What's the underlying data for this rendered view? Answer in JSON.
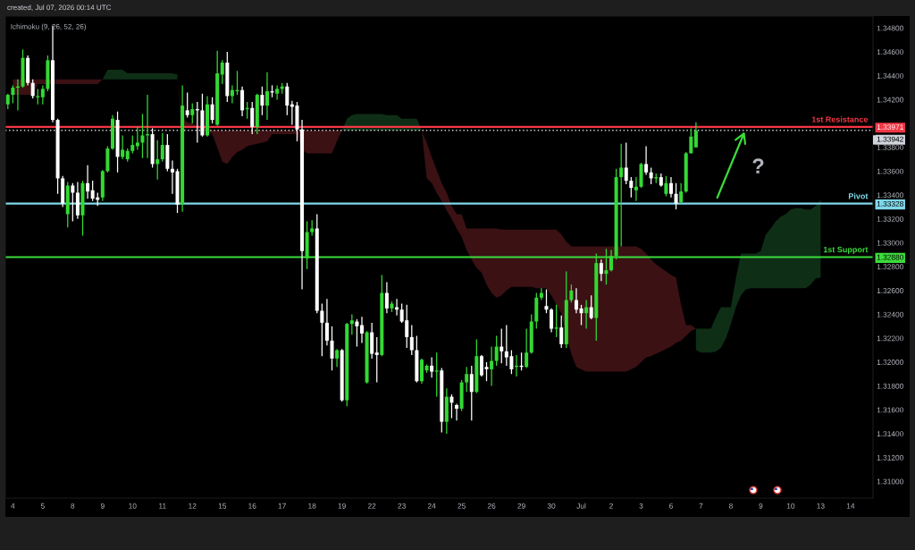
{
  "chart_data": {
    "type": "candlestick",
    "title": "created, Jul 07, 2026 00:14 UTC",
    "annotations": [
      "Ichimoku (9, 26, 52, 26)",
      {
        "text": "?",
        "y": 1.3393
      }
    ],
    "categories": [
      null,
      "4",
      null,
      null,
      null,
      null,
      null,
      "5",
      null,
      null,
      null,
      null,
      null,
      "8",
      null,
      null,
      null,
      null,
      null,
      "9",
      null,
      null,
      null,
      null,
      null,
      "10",
      null,
      null,
      null,
      null,
      null,
      "11",
      null,
      null,
      null,
      null,
      null,
      "12",
      null,
      null,
      null,
      null,
      null,
      "15",
      null,
      null,
      null,
      null,
      null,
      "16",
      null,
      null,
      null,
      null,
      null,
      "17",
      null,
      null,
      null,
      null,
      null,
      "18",
      null,
      null,
      null,
      null,
      null,
      "19",
      null,
      null,
      null,
      null,
      null,
      "22",
      null,
      null,
      null,
      null,
      null,
      "23",
      null,
      null,
      null,
      null,
      null,
      "24",
      null,
      null,
      null,
      null,
      null,
      "25",
      null,
      null,
      null,
      null,
      null,
      "26",
      null,
      null,
      null,
      null,
      null,
      "29",
      null,
      null,
      null,
      null,
      null,
      "30",
      null,
      null,
      null,
      null,
      null,
      "Jul",
      null,
      null,
      null,
      null,
      null,
      "2",
      null,
      null,
      null,
      null,
      null,
      "3",
      null,
      null,
      null,
      null,
      null,
      "6",
      null,
      null,
      null,
      null,
      null,
      "7",
      null,
      null,
      null,
      null,
      null,
      "8",
      null,
      null,
      null,
      null,
      null,
      "9",
      null,
      null,
      null,
      null,
      null,
      "10",
      null,
      null,
      null,
      null,
      null,
      "13",
      null,
      null,
      null,
      null,
      null,
      "14",
      null,
      null,
      null,
      null
    ],
    "ohlc": [
      [
        1.3416,
        1.3425,
        1.3412,
        1.3424
      ],
      [
        1.3424,
        1.3432,
        1.3417,
        1.343
      ],
      [
        1.343,
        1.3437,
        1.3411,
        1.3431
      ],
      [
        1.3431,
        1.3462,
        1.343,
        1.3455
      ],
      [
        1.3455,
        1.3457,
        1.3432,
        1.3434
      ],
      [
        1.3434,
        1.3437,
        1.3421,
        1.3423
      ],
      [
        1.3422,
        1.3429,
        1.3416,
        1.3423
      ],
      [
        1.3422,
        1.3432,
        1.3416,
        1.3429
      ],
      [
        1.3429,
        1.3457,
        1.3427,
        1.3453
      ],
      [
        1.3453,
        1.3482,
        1.3401,
        1.3403
      ],
      [
        1.3403,
        1.3404,
        1.3341,
        1.3354
      ],
      [
        1.3354,
        1.3356,
        1.333,
        1.3333
      ],
      [
        1.3324,
        1.3351,
        1.3313,
        1.3348
      ],
      [
        1.3348,
        1.335,
        1.3318,
        1.3342
      ],
      [
        1.3342,
        1.3351,
        1.332,
        1.3323
      ],
      [
        1.3323,
        1.3352,
        1.3306,
        1.335
      ],
      [
        1.335,
        1.3365,
        1.3337,
        1.3343
      ],
      [
        1.3344,
        1.3352,
        1.3335,
        1.3337
      ],
      [
        1.3338,
        1.3342,
        1.3331,
        1.3336
      ],
      [
        1.3338,
        1.3361,
        1.3335,
        1.336
      ],
      [
        1.336,
        1.3381,
        1.3359,
        1.3379
      ],
      [
        1.3379,
        1.3407,
        1.3378,
        1.3404
      ],
      [
        1.3403,
        1.341,
        1.3359,
        1.3372
      ],
      [
        1.3372,
        1.339,
        1.337,
        1.3378
      ],
      [
        1.337,
        1.3379,
        1.3368,
        1.3377
      ],
      [
        1.3377,
        1.339,
        1.3375,
        1.3382
      ],
      [
        1.3381,
        1.3397,
        1.3378,
        1.3384
      ],
      [
        1.3384,
        1.3408,
        1.3371,
        1.339
      ],
      [
        1.339,
        1.3424,
        1.3371,
        1.3391
      ],
      [
        1.3391,
        1.3396,
        1.3363,
        1.3366
      ],
      [
        1.3366,
        1.3386,
        1.3353,
        1.337
      ],
      [
        1.337,
        1.3392,
        1.3368,
        1.3382
      ],
      [
        1.3382,
        1.3391,
        1.336,
        1.3362
      ],
      [
        1.3362,
        1.3369,
        1.3341,
        1.3359
      ],
      [
        1.336,
        1.3362,
        1.3325,
        1.3332
      ],
      [
        1.3332,
        1.3432,
        1.3326,
        1.3415
      ],
      [
        1.3411,
        1.3426,
        1.3405,
        1.3407
      ],
      [
        1.3407,
        1.3417,
        1.34,
        1.3412
      ],
      [
        1.3412,
        1.3418,
        1.3384,
        1.3411
      ],
      [
        1.3411,
        1.3425,
        1.3389,
        1.339
      ],
      [
        1.339,
        1.3423,
        1.3389,
        1.3416
      ],
      [
        1.3416,
        1.3422,
        1.34,
        1.3403
      ],
      [
        1.3399,
        1.3461,
        1.3398,
        1.3442
      ],
      [
        1.3441,
        1.3453,
        1.3433,
        1.3451
      ],
      [
        1.3451,
        1.346,
        1.3418,
        1.3423
      ],
      [
        1.3423,
        1.3432,
        1.3417,
        1.3428
      ],
      [
        1.3427,
        1.3444,
        1.3424,
        1.3428
      ],
      [
        1.3428,
        1.3431,
        1.3406,
        1.3411
      ],
      [
        1.3412,
        1.3418,
        1.3404,
        1.3413
      ],
      [
        1.3413,
        1.3418,
        1.3391,
        1.3397
      ],
      [
        1.3397,
        1.3425,
        1.3391,
        1.3424
      ],
      [
        1.3424,
        1.3431,
        1.3407,
        1.3415
      ],
      [
        1.3415,
        1.3443,
        1.3403,
        1.3427
      ],
      [
        1.3427,
        1.3432,
        1.3422,
        1.3426
      ],
      [
        1.3425,
        1.3432,
        1.342,
        1.3429
      ],
      [
        1.3429,
        1.3434,
        1.3425,
        1.3431
      ],
      [
        1.3431,
        1.3434,
        1.3407,
        1.3415
      ],
      [
        1.3416,
        1.3419,
        1.3399,
        1.3414
      ],
      [
        1.3415,
        1.3418,
        1.3385,
        1.3395
      ],
      [
        1.3395,
        1.3403,
        1.3261,
        1.3293
      ],
      [
        1.3287,
        1.3318,
        1.3278,
        1.3309
      ],
      [
        1.3309,
        1.3319,
        1.3306,
        1.3312
      ],
      [
        1.3312,
        1.3324,
        1.3241,
        1.3243
      ],
      [
        1.3243,
        1.3249,
        1.3205,
        1.3233
      ],
      [
        1.3233,
        1.3253,
        1.3214,
        1.3218
      ],
      [
        1.3218,
        1.323,
        1.3193,
        1.3203
      ],
      [
        1.3203,
        1.3211,
        1.3196,
        1.321
      ],
      [
        1.321,
        1.3211,
        1.3167,
        1.3168
      ],
      [
        1.3168,
        1.3233,
        1.3163,
        1.3232
      ],
      [
        1.3232,
        1.324,
        1.3223,
        1.3235
      ],
      [
        1.3234,
        1.3236,
        1.3213,
        1.323
      ],
      [
        1.3231,
        1.3238,
        1.3216,
        1.3224
      ],
      [
        1.3183,
        1.3226,
        1.3182,
        1.3225
      ],
      [
        1.3225,
        1.3233,
        1.3203,
        1.3207
      ],
      [
        1.3208,
        1.3221,
        1.3183,
        1.3206
      ],
      [
        1.3206,
        1.3273,
        1.3205,
        1.3258
      ],
      [
        1.3258,
        1.3267,
        1.3241,
        1.3245
      ],
      [
        1.3245,
        1.3251,
        1.3242,
        1.3249
      ],
      [
        1.3246,
        1.3253,
        1.3239,
        1.3244
      ],
      [
        1.3244,
        1.3249,
        1.3233,
        1.3234
      ],
      [
        1.3235,
        1.3248,
        1.3212,
        1.3221
      ],
      [
        1.3221,
        1.3231,
        1.3206,
        1.321
      ],
      [
        1.321,
        1.3222,
        1.3183,
        1.3184
      ],
      [
        1.3184,
        1.3203,
        1.3182,
        1.3202
      ],
      [
        1.3193,
        1.3198,
        1.3191,
        1.3197
      ],
      [
        1.3197,
        1.3204,
        1.3187,
        1.3192
      ],
      [
        1.3192,
        1.3208,
        1.3171,
        1.3193
      ],
      [
        1.3193,
        1.3195,
        1.3141,
        1.315
      ],
      [
        1.315,
        1.3178,
        1.314,
        1.3171
      ],
      [
        1.3171,
        1.3173,
        1.3153,
        1.3166
      ],
      [
        1.3164,
        1.3165,
        1.3151,
        1.3161
      ],
      [
        1.3161,
        1.3185,
        1.3159,
        1.3183
      ],
      [
        1.3183,
        1.3196,
        1.3175,
        1.319
      ],
      [
        1.319,
        1.3197,
        1.3151,
        1.3175
      ],
      [
        1.3175,
        1.3219,
        1.3174,
        1.3205
      ],
      [
        1.3205,
        1.3206,
        1.3188,
        1.3189
      ],
      [
        1.3196,
        1.32,
        1.3184,
        1.3194
      ],
      [
        1.3194,
        1.3213,
        1.318,
        1.3201
      ],
      [
        1.3201,
        1.3222,
        1.3197,
        1.3213
      ],
      [
        1.3213,
        1.3228,
        1.3199,
        1.3209
      ],
      [
        1.3209,
        1.3231,
        1.3197,
        1.3204
      ],
      [
        1.3205,
        1.321,
        1.319,
        1.3194
      ],
      [
        1.3196,
        1.3206,
        1.3188,
        1.3197
      ],
      [
        1.3197,
        1.3208,
        1.3193,
        1.3196
      ],
      [
        1.3196,
        1.3228,
        1.3195,
        1.3208
      ],
      [
        1.3208,
        1.324,
        1.3207,
        1.3234
      ],
      [
        1.3234,
        1.3258,
        1.3228,
        1.3254
      ],
      [
        1.3254,
        1.3262,
        1.3252,
        1.3258
      ],
      [
        1.3247,
        1.3261,
        1.3241,
        1.3244
      ],
      [
        1.3244,
        1.3245,
        1.3225,
        1.3228
      ],
      [
        1.3228,
        1.3248,
        1.3221,
        1.3229
      ],
      [
        1.3229,
        1.3239,
        1.3212,
        1.3215
      ],
      [
        1.3215,
        1.3276,
        1.3212,
        1.3252
      ],
      [
        1.3252,
        1.3265,
        1.325,
        1.326
      ],
      [
        1.3252,
        1.3262,
        1.3241,
        1.3244
      ],
      [
        1.3245,
        1.3248,
        1.3231,
        1.3241
      ],
      [
        1.3241,
        1.3252,
        1.3228,
        1.3246
      ],
      [
        1.3246,
        1.3256,
        1.3236,
        1.3237
      ],
      [
        1.3237,
        1.3291,
        1.3218,
        1.3283
      ],
      [
        1.3283,
        1.3286,
        1.3268,
        1.3274
      ],
      [
        1.3274,
        1.3295,
        1.3265,
        1.3277
      ],
      [
        1.3277,
        1.3294,
        1.3276,
        1.3289
      ],
      [
        1.3289,
        1.3362,
        1.3286,
        1.3355
      ],
      [
        1.3355,
        1.3383,
        1.3297,
        1.3363
      ],
      [
        1.3363,
        1.3384,
        1.3349,
        1.3352
      ],
      [
        1.3352,
        1.3355,
        1.3338,
        1.3346
      ],
      [
        1.3344,
        1.3355,
        1.3335,
        1.3347
      ],
      [
        1.3347,
        1.3367,
        1.3346,
        1.3366
      ],
      [
        1.3366,
        1.3381,
        1.3357,
        1.3359
      ],
      [
        1.3359,
        1.3363,
        1.3349,
        1.3354
      ],
      [
        1.3354,
        1.3358,
        1.335,
        1.3355
      ],
      [
        1.3355,
        1.3358,
        1.3347,
        1.3348
      ],
      [
        1.3341,
        1.3356,
        1.3339,
        1.335
      ],
      [
        1.335,
        1.3355,
        1.3338,
        1.3341
      ],
      [
        1.3341,
        1.335,
        1.3328,
        1.3333
      ],
      [
        1.3334,
        1.335,
        1.3333,
        1.3343
      ],
      [
        1.3343,
        1.3376,
        1.3342,
        1.3375
      ],
      [
        1.3375,
        1.3396,
        1.3375,
        1.3389
      ],
      [
        1.338,
        1.3401,
        1.338,
        1.3394
      ],
      null,
      null,
      null,
      null,
      null,
      null,
      null,
      null,
      null,
      null,
      null,
      null,
      null,
      null,
      null,
      null,
      null,
      null,
      null,
      null,
      null,
      null,
      null,
      null,
      null,
      null,
      null,
      null,
      null,
      null,
      null,
      null,
      null,
      null,
      null
    ],
    "colors": [
      "#33d933",
      "#33d933",
      "#33d933",
      "#33d933",
      "#ffffff",
      "#ffffff",
      "#33d933",
      "#33d933",
      "#33d933",
      "#ffffff",
      "#ffffff",
      "#ffffff",
      "#33d933",
      "#ffffff",
      "#ffffff",
      "#33d933",
      "#ffffff",
      "#ffffff",
      "#ffffff",
      "#33d933",
      "#33d933",
      "#33d933",
      "#ffffff",
      "#33d933",
      "#33d933",
      "#33d933",
      "#33d933",
      "#33d933",
      "#33d933",
      "#ffffff",
      "#33d933",
      "#33d933",
      "#ffffff",
      "#ffffff",
      "#ffffff",
      "#33d933",
      "#ffffff",
      "#33d933",
      "#ffffff",
      "#ffffff",
      "#33d933",
      "#ffffff",
      "#33d933",
      "#33d933",
      "#ffffff",
      "#33d933",
      "#33d933",
      "#ffffff",
      "#33d933",
      "#ffffff",
      "#33d933",
      "#ffffff",
      "#33d933",
      "#ffffff",
      "#33d933",
      "#33d933",
      "#ffffff",
      "#ffffff",
      "#ffffff",
      "#ffffff",
      "#33d933",
      "#33d933",
      "#ffffff",
      "#ffffff",
      "#ffffff",
      "#ffffff",
      "#33d933",
      "#ffffff",
      "#33d933",
      "#33d933",
      "#ffffff",
      "#ffffff",
      "#33d933",
      "#ffffff",
      "#ffffff",
      "#33d933",
      "#ffffff",
      "#33d933",
      "#ffffff",
      "#ffffff",
      "#ffffff",
      "#ffffff",
      "#ffffff",
      "#33d933",
      "#33d933",
      "#ffffff",
      "#33d933",
      "#ffffff",
      "#33d933",
      "#ffffff",
      "#ffffff",
      "#33d933",
      "#33d933",
      "#ffffff",
      "#33d933",
      "#ffffff",
      "#ffffff",
      "#33d933",
      "#33d933",
      "#ffffff",
      "#ffffff",
      "#ffffff",
      "#33d933",
      "#ffffff",
      "#33d933",
      "#33d933",
      "#33d933",
      "#33d933",
      "#ffffff",
      "#ffffff",
      "#33d933",
      "#ffffff",
      "#33d933",
      "#33d933",
      "#ffffff",
      "#ffffff",
      "#33d933",
      "#ffffff",
      "#33d933",
      "#ffffff",
      "#33d933",
      "#33d933",
      "#33d933",
      "#33d933",
      "#ffffff",
      "#ffffff",
      "#33d933",
      "#33d933",
      "#ffffff",
      "#ffffff",
      "#33d933",
      "#ffffff",
      "#33d933",
      "#ffffff",
      "#ffffff",
      "#33d933",
      "#33d933",
      "#33d933",
      "#33d933",
      null,
      null,
      null,
      null,
      null,
      null,
      null,
      null,
      null,
      null,
      null,
      null,
      null,
      null,
      null,
      null,
      null,
      null,
      null,
      null,
      null,
      null,
      null,
      null,
      null,
      null,
      null,
      null,
      null,
      null,
      null,
      null,
      null,
      null,
      null
    ],
    "series": [
      {
        "type": "area",
        "color": "#3b1114",
        "values": [
          null,
          null,
          null,
          null,
          null,
          null,
          null,
          null,
          null,
          null,
          null,
          null,
          null,
          null,
          null,
          null,
          null,
          null,
          null,
          null,
          null,
          null,
          null,
          null,
          null,
          null,
          null,
          null,
          null,
          null,
          null,
          null,
          null,
          null,
          null,
          null,
          null,
          null,
          null,
          null,
          null,
          null,
          null,
          null,
          null,
          null,
          null,
          null,
          null,
          null,
          null,
          null,
          null,
          null,
          null,
          null,
          null,
          null,
          null,
          null,
          null,
          null,
          null,
          null,
          null,
          null,
          null,
          null,
          null,
          null,
          null,
          null,
          null,
          null,
          null,
          null,
          null,
          null,
          null,
          null,
          null,
          null,
          null,
          null,
          null,
          null,
          null,
          null,
          null,
          null,
          null,
          null,
          null,
          null,
          null,
          null,
          null,
          null,
          null,
          null,
          null,
          null,
          null,
          null,
          null,
          null,
          null,
          null,
          null,
          null,
          null,
          null,
          null,
          null,
          null,
          null,
          null,
          null,
          null,
          null,
          null,
          null,
          null,
          null,
          null,
          null,
          null,
          null,
          null,
          null,
          null,
          null,
          null,
          null,
          null,
          null,
          null,
          null,
          null,
          null,
          null,
          null,
          null,
          null,
          null,
          null,
          null,
          null,
          null,
          null,
          null,
          null,
          null,
          null,
          null,
          null,
          null,
          null,
          null,
          null,
          null,
          null,
          null,
          null,
          null,
          null,
          null,
          null,
          null,
          null,
          null,
          null,
          null,
          null
        ],
        "upper": [
          null,
          1.3437,
          1.3437,
          1.3437,
          1.3437,
          1.3437,
          1.3437,
          1.3437,
          1.3437,
          1.3437,
          1.3437,
          1.3437,
          1.3437,
          1.3437,
          1.3437,
          1.3437,
          1.3437,
          1.3437,
          1.3437,
          1.3437,
          null,
          null,
          null,
          null,
          null,
          null,
          null,
          null,
          null,
          null,
          null,
          null,
          null,
          null,
          1.3437,
          1.3405,
          1.3401,
          1.34,
          1.3398,
          1.3397,
          1.3395,
          1.3394,
          1.3394,
          1.3394,
          1.3394,
          1.3394,
          1.3394,
          1.3394,
          1.3394,
          1.3394,
          1.3394,
          1.3394,
          1.3394,
          1.3394,
          1.3394,
          1.3394,
          1.3394,
          1.3394,
          1.3394,
          1.3394,
          1.3394,
          1.3394,
          1.3394,
          1.3394,
          1.3394,
          1.3394,
          1.3394,
          1.3394,
          null,
          null,
          null,
          null,
          null,
          null,
          null,
          null,
          null,
          null,
          null,
          null,
          null,
          null,
          null,
          1.3394,
          1.3384,
          1.3372,
          1.3361,
          1.335,
          1.3342,
          1.3331,
          1.3324,
          1.3324,
          1.3312,
          1.3312,
          1.3312,
          1.3312,
          1.3312,
          1.3312,
          1.3312,
          1.3311,
          1.3311,
          1.3311,
          1.3311,
          1.3311,
          1.3311,
          1.3311,
          1.3311,
          1.3311,
          1.3311,
          1.3311,
          1.3311,
          1.3307,
          1.3301,
          1.3297,
          1.3297,
          1.3297,
          1.3297,
          1.3297,
          1.3297,
          1.3297,
          1.3297,
          1.3297,
          1.3297,
          1.3297,
          1.3297,
          1.3297,
          1.3297,
          1.3295,
          1.3291,
          1.3286,
          1.3282,
          1.3279,
          1.3276,
          1.3273,
          1.3271,
          1.3248,
          1.3231,
          1.3231,
          1.3228,
          null,
          null,
          null,
          null,
          null,
          null,
          null,
          null,
          null,
          null,
          null,
          null,
          null,
          null,
          null,
          null,
          null,
          null,
          null,
          null,
          null,
          null,
          null,
          null,
          null,
          null,
          null,
          null,
          null,
          null,
          null,
          null,
          null,
          null,
          null
        ],
        "lower": [
          null,
          1.3424,
          1.3424,
          1.3424,
          1.3424,
          1.3424,
          1.3433,
          1.3433,
          1.3433,
          1.3433,
          1.3433,
          1.3433,
          1.3433,
          1.3433,
          1.3433,
          1.3433,
          1.3433,
          1.3433,
          1.3433,
          1.3437,
          null,
          null,
          null,
          null,
          null,
          null,
          null,
          null,
          null,
          null,
          null,
          null,
          null,
          null,
          1.3437,
          1.3398,
          1.3398,
          1.3397,
          1.3396,
          1.3395,
          1.3393,
          1.3391,
          1.338,
          1.3368,
          1.3366,
          1.3372,
          1.3376,
          1.3378,
          1.3381,
          1.3382,
          1.3383,
          1.3384,
          1.3385,
          1.3391,
          1.3391,
          1.3391,
          1.3391,
          1.3391,
          1.3391,
          1.3378,
          1.3375,
          1.3375,
          1.3375,
          1.3375,
          1.3375,
          1.3375,
          1.3385,
          1.3394,
          null,
          null,
          null,
          null,
          null,
          null,
          null,
          null,
          null,
          null,
          null,
          null,
          null,
          null,
          null,
          1.3394,
          1.3354,
          1.335,
          1.3342,
          1.3335,
          1.3327,
          1.332,
          1.3312,
          1.3305,
          1.3294,
          1.3286,
          1.3279,
          1.3275,
          1.3265,
          1.3258,
          1.3254,
          1.3256,
          1.326,
          1.3263,
          1.3263,
          1.3263,
          1.3263,
          1.3263,
          1.3262,
          1.3262,
          1.3262,
          1.3256,
          1.3248,
          1.3241,
          1.3222,
          1.3207,
          1.3196,
          1.3194,
          1.3192,
          1.3192,
          1.3192,
          1.3192,
          1.3192,
          1.3192,
          1.3192,
          1.3192,
          1.3192,
          1.3194,
          1.3196,
          1.32,
          1.3204,
          1.3205,
          1.3207,
          1.3209,
          1.3211,
          1.3213,
          1.3216,
          1.3218,
          1.3222,
          1.3226,
          1.3228,
          null,
          null,
          null,
          null,
          null,
          null,
          null,
          null,
          null,
          null,
          null,
          null,
          null,
          null,
          null,
          null,
          null,
          null,
          null,
          null,
          null,
          null,
          null,
          null,
          null,
          null,
          null,
          null,
          null,
          null,
          null,
          null,
          null,
          null,
          null
        ]
      },
      {
        "type": "area",
        "color": "#0e2f16",
        "values": [
          null,
          null,
          null,
          null,
          null,
          null,
          null,
          null,
          null,
          null,
          null,
          null,
          null,
          null,
          null,
          null,
          null,
          null,
          null,
          null,
          null,
          null,
          null,
          null,
          null,
          null,
          null,
          null,
          null,
          null,
          null,
          null,
          null,
          null,
          null,
          null,
          null,
          null,
          null,
          null,
          null,
          null,
          null,
          null,
          null,
          null,
          null,
          null,
          null,
          null,
          null,
          null,
          null,
          null,
          null,
          null,
          null,
          null,
          null,
          null,
          null,
          null,
          null,
          null,
          null,
          null,
          null,
          null,
          null,
          null,
          null,
          null,
          null,
          null,
          null,
          null,
          null,
          null,
          null,
          null,
          null,
          null,
          null,
          null,
          null,
          null,
          null,
          null,
          null,
          null,
          null,
          null,
          null,
          null,
          null,
          null,
          null,
          null,
          null,
          null,
          null,
          null,
          null,
          null,
          null,
          null,
          null,
          null,
          null,
          null,
          null,
          null,
          null,
          null,
          null,
          null,
          null,
          null,
          null,
          null,
          null,
          null,
          null,
          null,
          null,
          null,
          null,
          null,
          null,
          null,
          null,
          null,
          null,
          null,
          null,
          null,
          null,
          null,
          null,
          null,
          null,
          null,
          null,
          null,
          null,
          null,
          null,
          null,
          null,
          null,
          null,
          null,
          null,
          null,
          null,
          null,
          null,
          null,
          null,
          null,
          null,
          null,
          null,
          null,
          null,
          null,
          null,
          null,
          null,
          null,
          null,
          null,
          null,
          null
        ],
        "upper": [
          null,
          null,
          null,
          null,
          null,
          null,
          null,
          null,
          null,
          null,
          null,
          null,
          null,
          null,
          null,
          null,
          null,
          null,
          null,
          1.3437,
          1.3445,
          1.3445,
          1.3445,
          1.3445,
          1.3442,
          1.3442,
          1.3442,
          1.3442,
          1.3442,
          1.3442,
          1.3442,
          1.3442,
          1.3442,
          1.3442,
          1.3441,
          null,
          null,
          null,
          null,
          null,
          null,
          null,
          null,
          null,
          null,
          null,
          null,
          null,
          null,
          null,
          null,
          null,
          null,
          null,
          null,
          null,
          null,
          null,
          null,
          null,
          null,
          null,
          null,
          null,
          null,
          null,
          null,
          1.3394,
          1.3404,
          1.3407,
          1.3408,
          1.3408,
          1.3408,
          1.3408,
          1.3408,
          1.3408,
          1.3407,
          1.3407,
          1.3407,
          1.3404,
          1.3404,
          1.3404,
          1.3404,
          1.3394,
          null,
          null,
          null,
          null,
          null,
          null,
          null,
          null,
          null,
          null,
          null,
          null,
          null,
          null,
          null,
          null,
          null,
          null,
          null,
          null,
          null,
          null,
          null,
          null,
          null,
          null,
          null,
          null,
          null,
          null,
          null,
          null,
          null,
          null,
          null,
          null,
          null,
          null,
          null,
          null,
          null,
          null,
          null,
          null,
          null,
          null,
          null,
          null,
          null,
          null,
          null,
          null,
          null,
          null,
          1.3228,
          1.3228,
          1.3228,
          1.3228,
          1.3238,
          1.3246,
          1.3246,
          1.3246,
          1.327,
          1.3291,
          1.3291,
          1.3291,
          1.3291,
          1.3293,
          1.3307,
          1.3312,
          1.3318,
          1.3322,
          1.3324,
          1.3328,
          1.3329,
          1.3329,
          1.3328,
          1.3328,
          1.3331,
          1.3336,
          null,
          null,
          null,
          null,
          null,
          null,
          null,
          null,
          null,
          null
        ],
        "lower": [
          null,
          null,
          null,
          null,
          null,
          null,
          null,
          null,
          null,
          null,
          null,
          null,
          null,
          null,
          null,
          null,
          null,
          null,
          null,
          1.3437,
          1.3437,
          1.3437,
          1.3437,
          1.3437,
          1.3437,
          1.3437,
          1.3437,
          1.3437,
          1.3437,
          1.3437,
          1.3437,
          1.3437,
          1.3437,
          1.3437,
          1.3437,
          null,
          null,
          null,
          null,
          null,
          null,
          null,
          null,
          null,
          null,
          null,
          null,
          null,
          null,
          null,
          null,
          null,
          null,
          null,
          null,
          null,
          null,
          null,
          null,
          null,
          null,
          null,
          null,
          null,
          null,
          null,
          null,
          1.3394,
          1.3394,
          1.3394,
          1.3394,
          1.3394,
          1.3394,
          1.3394,
          1.3394,
          1.3394,
          1.3394,
          1.3394,
          1.3394,
          1.3394,
          1.3394,
          1.3394,
          1.3394,
          1.3394,
          null,
          null,
          null,
          null,
          null,
          null,
          null,
          null,
          null,
          null,
          null,
          null,
          null,
          null,
          null,
          null,
          null,
          null,
          null,
          null,
          null,
          null,
          null,
          null,
          null,
          null,
          null,
          null,
          null,
          null,
          null,
          null,
          null,
          null,
          null,
          null,
          null,
          null,
          null,
          null,
          null,
          null,
          null,
          null,
          null,
          null,
          null,
          null,
          null,
          null,
          null,
          null,
          null,
          null,
          1.321,
          1.3208,
          1.3208,
          1.3208,
          1.3209,
          1.3212,
          1.322,
          1.3232,
          1.3246,
          1.3256,
          1.3261,
          1.3262,
          1.3262,
          1.3262,
          1.3262,
          1.3262,
          1.3262,
          1.3262,
          1.3262,
          1.3262,
          1.3262,
          1.3262,
          1.3262,
          1.3265,
          1.327,
          1.3271,
          null,
          null,
          null,
          null,
          null,
          null,
          null,
          null,
          null,
          null
        ]
      }
    ],
    "ylim": [
      1.3086,
      1.349
    ],
    "yticks": [
      {
        "value": 1.348,
        "label": "1.34800"
      },
      {
        "value": 1.346,
        "label": "1.34600"
      },
      {
        "value": 1.344,
        "label": "1.34400"
      },
      {
        "value": 1.342,
        "label": "1.34200"
      },
      {
        "value": 1.33971,
        "label": "1.33971"
      },
      {
        "value": 1.338,
        "label": "1.33800"
      },
      {
        "value": 1.336,
        "label": "1.33600"
      },
      {
        "value": 1.334,
        "label": "1.33400"
      },
      {
        "value": 1.33328,
        "label": "1.33328"
      },
      {
        "value": 1.332,
        "label": "1.33200"
      },
      {
        "value": 1.33,
        "label": "1.33000"
      },
      {
        "value": 1.3288,
        "label": "1.32880"
      },
      {
        "value": 1.328,
        "label": "1.32800"
      },
      {
        "value": 1.326,
        "label": "1.32600"
      },
      {
        "value": 1.324,
        "label": "1.32400"
      },
      {
        "value": 1.322,
        "label": "1.32200"
      },
      {
        "value": 1.32,
        "label": "1.32000"
      },
      {
        "value": 1.318,
        "label": "1.31800"
      },
      {
        "value": 1.316,
        "label": "1.31600"
      },
      {
        "value": 1.314,
        "label": "1.31400"
      },
      {
        "value": 1.312,
        "label": "1.31200"
      },
      {
        "value": 1.31,
        "label": "1.31000"
      }
    ],
    "ref_lines": [
      {
        "axis": "y",
        "value": 1.33971,
        "label": "1st Resistance",
        "color": "#f23645"
      },
      {
        "axis": "y",
        "value": 1.33942,
        "label": "1.33942",
        "color": "#d1d4dc",
        "line_style": "dotted"
      },
      {
        "axis": "y",
        "value": 1.33328,
        "label": "Pivot",
        "color": "#80d8ea"
      },
      {
        "axis": "y",
        "value": 1.3288,
        "label": "1st Support",
        "color": "#3bdb3b"
      }
    ]
  }
}
